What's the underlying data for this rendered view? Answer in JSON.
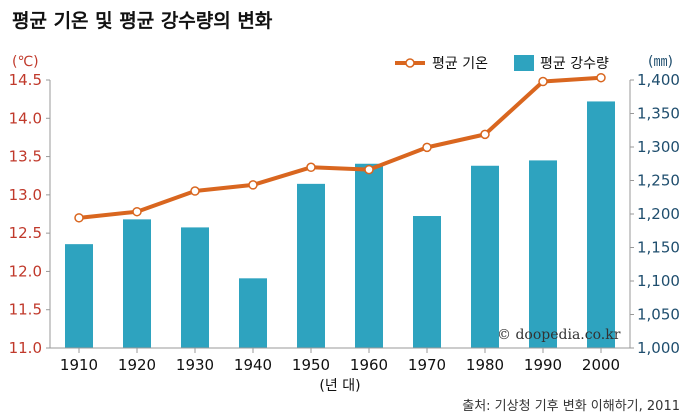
{
  "chart_data": {
    "type": "bar+line",
    "title": "평균 기온 및 평균 강수량의 변화",
    "xlabel": "(년 대)",
    "categories": [
      "1910",
      "1920",
      "1930",
      "1940",
      "1950",
      "1960",
      "1970",
      "1980",
      "1990",
      "2000"
    ],
    "left_axis": {
      "unit": "(℃)",
      "ylim": [
        11.0,
        14.5
      ],
      "ticks": [
        "11.0",
        "11.5",
        "12.0",
        "12.5",
        "13.0",
        "13.5",
        "14.0",
        "14.5"
      ],
      "tick_values": [
        11.0,
        11.5,
        12.0,
        12.5,
        13.0,
        13.5,
        14.0,
        14.5
      ]
    },
    "right_axis": {
      "unit": "(㎜)",
      "ylim": [
        1000,
        1400
      ],
      "ticks": [
        "1,000",
        "1,050",
        "1,100",
        "1,150",
        "1,200",
        "1,250",
        "1,300",
        "1,350",
        "1,400"
      ],
      "tick_values": [
        1000,
        1050,
        1100,
        1150,
        1200,
        1250,
        1300,
        1350,
        1400
      ]
    },
    "series": [
      {
        "name": "평균 강수량",
        "kind": "bar",
        "axis": "right",
        "color": "#2ea3bf",
        "values": [
          1155,
          1192,
          1180,
          1104,
          1245,
          1275,
          1197,
          1272,
          1280,
          1368
        ]
      },
      {
        "name": "평균 기온",
        "kind": "line",
        "axis": "left",
        "color": "#d9661f",
        "values": [
          12.7,
          12.78,
          13.05,
          13.13,
          13.36,
          13.33,
          13.62,
          13.79,
          14.48,
          14.53
        ]
      }
    ],
    "legend": {
      "placement": "top-right"
    },
    "grid": false
  },
  "source_text": "출처: 기상청 기후 변화 이해하기, 2011",
  "watermark_text": "© doopedia.co.kr"
}
